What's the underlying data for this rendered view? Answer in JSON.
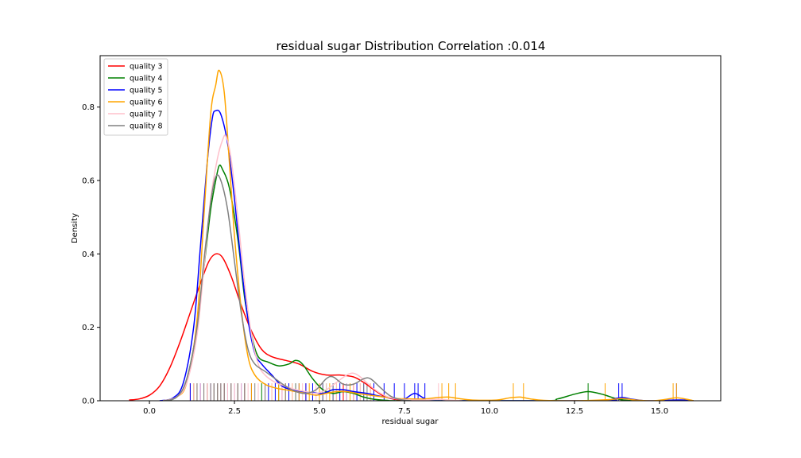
{
  "chart_data": {
    "type": "line",
    "title": "residual sugar Distribution Correlation :0.014",
    "xlabel": "residual sugar",
    "ylabel": "Density",
    "xlim": [
      -1.45,
      16.8
    ],
    "ylim": [
      0,
      0.94
    ],
    "xticks": [
      0.0,
      2.5,
      5.0,
      7.5,
      10.0,
      12.5,
      15.0
    ],
    "xtick_labels": [
      "0.0",
      "2.5",
      "5.0",
      "7.5",
      "10.0",
      "12.5",
      "15.0"
    ],
    "yticks": [
      0.0,
      0.2,
      0.4,
      0.6,
      0.8
    ],
    "ytick_labels": [
      "0.0",
      "0.2",
      "0.4",
      "0.6",
      "0.8"
    ],
    "grid": false,
    "legend_position": "top-left",
    "series": [
      {
        "name": "quality 3",
        "color": "#ff0000",
        "points": [
          [
            -0.6,
            0.002
          ],
          [
            -0.3,
            0.005
          ],
          [
            0.0,
            0.015
          ],
          [
            0.3,
            0.04
          ],
          [
            0.6,
            0.09
          ],
          [
            0.9,
            0.16
          ],
          [
            1.2,
            0.24
          ],
          [
            1.5,
            0.32
          ],
          [
            1.75,
            0.38
          ],
          [
            1.95,
            0.4
          ],
          [
            2.15,
            0.39
          ],
          [
            2.4,
            0.34
          ],
          [
            2.7,
            0.26
          ],
          [
            3.0,
            0.19
          ],
          [
            3.3,
            0.14
          ],
          [
            3.6,
            0.12
          ],
          [
            4.0,
            0.11
          ],
          [
            4.4,
            0.1
          ],
          [
            4.8,
            0.08
          ],
          [
            5.2,
            0.07
          ],
          [
            5.6,
            0.07
          ],
          [
            6.0,
            0.065
          ],
          [
            6.3,
            0.05
          ],
          [
            6.6,
            0.03
          ],
          [
            6.9,
            0.012
          ],
          [
            7.2,
            0.004
          ],
          [
            7.5,
            0.001
          ],
          [
            7.7,
            0.0
          ]
        ],
        "rug": [
          1.2,
          1.4,
          1.6,
          1.8,
          2.0,
          2.1,
          2.2,
          2.5,
          2.8,
          3.4,
          3.9,
          4.6,
          5.7,
          6.0
        ]
      },
      {
        "name": "quality 4",
        "color": "#008000",
        "points": [
          [
            0.4,
            0.0
          ],
          [
            0.8,
            0.01
          ],
          [
            1.1,
            0.06
          ],
          [
            1.4,
            0.2
          ],
          [
            1.6,
            0.36
          ],
          [
            1.8,
            0.52
          ],
          [
            1.95,
            0.6
          ],
          [
            2.05,
            0.64
          ],
          [
            2.15,
            0.63
          ],
          [
            2.35,
            0.58
          ],
          [
            2.6,
            0.44
          ],
          [
            2.8,
            0.28
          ],
          [
            3.0,
            0.18
          ],
          [
            3.2,
            0.12
          ],
          [
            3.5,
            0.105
          ],
          [
            3.8,
            0.095
          ],
          [
            4.1,
            0.1
          ],
          [
            4.3,
            0.11
          ],
          [
            4.5,
            0.1
          ],
          [
            4.8,
            0.06
          ],
          [
            5.1,
            0.03
          ],
          [
            5.4,
            0.02
          ],
          [
            5.7,
            0.025
          ],
          [
            6.0,
            0.02
          ],
          [
            6.3,
            0.01
          ],
          [
            6.6,
            0.004
          ],
          [
            7.0,
            0.001
          ],
          [
            7.5,
            0.0
          ],
          [
            11.5,
            0.0
          ],
          [
            12.0,
            0.005
          ],
          [
            12.5,
            0.018
          ],
          [
            12.9,
            0.025
          ],
          [
            13.3,
            0.018
          ],
          [
            13.8,
            0.004
          ],
          [
            14.2,
            0.0
          ]
        ],
        "rug": [
          1.3,
          1.6,
          1.9,
          2.0,
          2.3,
          2.6,
          3.3,
          3.8,
          4.3,
          5.2,
          12.9
        ]
      },
      {
        "name": "quality 5",
        "color": "#0000ff",
        "points": [
          [
            0.3,
            0.0
          ],
          [
            0.7,
            0.008
          ],
          [
            1.0,
            0.05
          ],
          [
            1.3,
            0.2
          ],
          [
            1.5,
            0.42
          ],
          [
            1.7,
            0.65
          ],
          [
            1.85,
            0.77
          ],
          [
            1.95,
            0.79
          ],
          [
            2.1,
            0.78
          ],
          [
            2.3,
            0.7
          ],
          [
            2.5,
            0.55
          ],
          [
            2.7,
            0.37
          ],
          [
            2.9,
            0.22
          ],
          [
            3.1,
            0.13
          ],
          [
            3.3,
            0.1
          ],
          [
            3.6,
            0.07
          ],
          [
            3.9,
            0.04
          ],
          [
            4.2,
            0.03
          ],
          [
            4.5,
            0.025
          ],
          [
            4.8,
            0.022
          ],
          [
            5.1,
            0.02
          ],
          [
            5.4,
            0.03
          ],
          [
            5.7,
            0.03
          ],
          [
            6.0,
            0.025
          ],
          [
            6.4,
            0.02
          ],
          [
            6.8,
            0.012
          ],
          [
            7.2,
            0.006
          ],
          [
            7.5,
            0.005
          ],
          [
            7.8,
            0.02
          ],
          [
            8.1,
            0.006
          ],
          [
            8.5,
            0.0
          ],
          [
            13.3,
            0.0
          ],
          [
            13.6,
            0.004
          ],
          [
            13.9,
            0.009
          ],
          [
            14.2,
            0.004
          ],
          [
            14.6,
            0.0
          ],
          [
            15.0,
            0.0
          ],
          [
            15.4,
            0.002
          ],
          [
            15.8,
            0.002
          ],
          [
            16.0,
            0.0
          ]
        ],
        "rug": [
          1.2,
          1.5,
          1.7,
          1.8,
          1.9,
          2.0,
          2.1,
          2.2,
          2.3,
          2.4,
          2.5,
          2.6,
          2.7,
          2.8,
          3.0,
          3.2,
          3.5,
          3.7,
          3.9,
          4.1,
          4.4,
          4.6,
          4.8,
          5.1,
          5.4,
          5.6,
          5.8,
          6.1,
          6.3,
          6.6,
          6.9,
          7.2,
          7.5,
          7.8,
          7.9,
          8.1,
          13.8,
          13.9,
          15.5
        ]
      },
      {
        "name": "quality 6",
        "color": "#ffa500",
        "points": [
          [
            0.4,
            0.0
          ],
          [
            0.8,
            0.01
          ],
          [
            1.1,
            0.05
          ],
          [
            1.4,
            0.22
          ],
          [
            1.6,
            0.5
          ],
          [
            1.8,
            0.78
          ],
          [
            1.95,
            0.86
          ],
          [
            2.05,
            0.9
          ],
          [
            2.2,
            0.84
          ],
          [
            2.35,
            0.65
          ],
          [
            2.5,
            0.45
          ],
          [
            2.7,
            0.25
          ],
          [
            2.9,
            0.12
          ],
          [
            3.1,
            0.07
          ],
          [
            3.4,
            0.045
          ],
          [
            3.7,
            0.035
          ],
          [
            4.0,
            0.03
          ],
          [
            4.3,
            0.025
          ],
          [
            4.6,
            0.02
          ],
          [
            4.9,
            0.015
          ],
          [
            5.2,
            0.02
          ],
          [
            5.5,
            0.025
          ],
          [
            5.8,
            0.025
          ],
          [
            6.1,
            0.02
          ],
          [
            6.5,
            0.015
          ],
          [
            6.9,
            0.01
          ],
          [
            7.3,
            0.006
          ],
          [
            7.7,
            0.005
          ],
          [
            8.1,
            0.005
          ],
          [
            8.5,
            0.009
          ],
          [
            8.8,
            0.01
          ],
          [
            9.1,
            0.006
          ],
          [
            9.5,
            0.002
          ],
          [
            10.2,
            0.002
          ],
          [
            10.6,
            0.008
          ],
          [
            10.9,
            0.01
          ],
          [
            11.2,
            0.005
          ],
          [
            11.6,
            0.001
          ],
          [
            12.5,
            0.0
          ],
          [
            13.5,
            0.003
          ],
          [
            13.9,
            0.006
          ],
          [
            14.3,
            0.002
          ],
          [
            14.8,
            0.0
          ],
          [
            15.2,
            0.004
          ],
          [
            15.5,
            0.008
          ],
          [
            15.8,
            0.004
          ],
          [
            16.0,
            0.0
          ]
        ],
        "rug": [
          1.3,
          1.4,
          1.6,
          1.7,
          1.9,
          2.0,
          2.1,
          2.2,
          2.4,
          2.6,
          2.8,
          3.0,
          3.6,
          3.8,
          4.0,
          4.2,
          4.4,
          4.7,
          5.0,
          5.3,
          5.5,
          5.9,
          6.2,
          6.5,
          8.6,
          8.8,
          9.0,
          10.7,
          11.0,
          13.4,
          15.4,
          15.5
        ]
      },
      {
        "name": "quality 7",
        "color": "#ffc0cb",
        "points": [
          [
            0.4,
            0.0
          ],
          [
            0.8,
            0.01
          ],
          [
            1.1,
            0.05
          ],
          [
            1.4,
            0.18
          ],
          [
            1.6,
            0.36
          ],
          [
            1.8,
            0.55
          ],
          [
            2.0,
            0.66
          ],
          [
            2.15,
            0.71
          ],
          [
            2.25,
            0.72
          ],
          [
            2.4,
            0.66
          ],
          [
            2.6,
            0.5
          ],
          [
            2.8,
            0.32
          ],
          [
            3.0,
            0.18
          ],
          [
            3.2,
            0.1
          ],
          [
            3.4,
            0.07
          ],
          [
            3.7,
            0.05
          ],
          [
            4.0,
            0.04
          ],
          [
            4.3,
            0.03
          ],
          [
            4.6,
            0.025
          ],
          [
            4.9,
            0.02
          ],
          [
            5.2,
            0.03
          ],
          [
            5.5,
            0.05
          ],
          [
            5.8,
            0.07
          ],
          [
            6.0,
            0.075
          ],
          [
            6.2,
            0.065
          ],
          [
            6.5,
            0.04
          ],
          [
            6.8,
            0.02
          ],
          [
            7.1,
            0.008
          ],
          [
            7.5,
            0.003
          ],
          [
            8.0,
            0.002
          ],
          [
            8.5,
            0.004
          ],
          [
            8.8,
            0.002
          ],
          [
            9.2,
            0.0
          ]
        ],
        "rug": [
          1.3,
          1.5,
          1.6,
          1.7,
          1.8,
          1.9,
          2.0,
          2.1,
          2.2,
          2.3,
          2.4,
          2.5,
          2.6,
          2.7,
          2.9,
          3.2,
          3.4,
          3.6,
          3.9,
          4.2,
          4.5,
          4.9,
          5.2,
          5.5,
          5.8,
          6.0,
          6.2,
          6.5,
          8.5
        ]
      },
      {
        "name": "quality 8",
        "color": "#808080",
        "points": [
          [
            0.4,
            0.0
          ],
          [
            0.8,
            0.01
          ],
          [
            1.1,
            0.06
          ],
          [
            1.4,
            0.2
          ],
          [
            1.6,
            0.38
          ],
          [
            1.8,
            0.54
          ],
          [
            1.95,
            0.61
          ],
          [
            2.1,
            0.6
          ],
          [
            2.3,
            0.52
          ],
          [
            2.5,
            0.38
          ],
          [
            2.7,
            0.24
          ],
          [
            2.9,
            0.14
          ],
          [
            3.1,
            0.1
          ],
          [
            3.4,
            0.08
          ],
          [
            3.7,
            0.06
          ],
          [
            4.0,
            0.04
          ],
          [
            4.3,
            0.025
          ],
          [
            4.6,
            0.02
          ],
          [
            4.9,
            0.03
          ],
          [
            5.2,
            0.06
          ],
          [
            5.4,
            0.065
          ],
          [
            5.7,
            0.045
          ],
          [
            6.0,
            0.045
          ],
          [
            6.3,
            0.06
          ],
          [
            6.5,
            0.06
          ],
          [
            6.8,
            0.035
          ],
          [
            7.1,
            0.012
          ],
          [
            7.4,
            0.003
          ],
          [
            7.7,
            0.0
          ]
        ],
        "rug": [
          1.4,
          1.6,
          1.8,
          1.9,
          2.0,
          2.1,
          2.2,
          2.4,
          2.6,
          2.8,
          3.1,
          3.4,
          4.0,
          4.3,
          5.1,
          5.4,
          6.3,
          6.4
        ]
      }
    ]
  }
}
